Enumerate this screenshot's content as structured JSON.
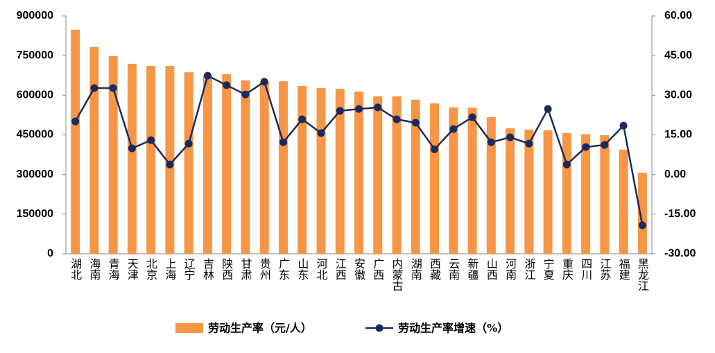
{
  "chart_data": {
    "type": "bar-line",
    "categories": [
      "湖北",
      "海南",
      "青海",
      "天津",
      "北京",
      "上海",
      "辽宁",
      "吉林",
      "陕西",
      "甘肃",
      "贵州",
      "广东",
      "山东",
      "河北",
      "江西",
      "安徽",
      "广西",
      "内蒙古",
      "湖南",
      "西藏",
      "云南",
      "新疆",
      "山西",
      "河南",
      "浙江",
      "宁夏",
      "重庆",
      "四川",
      "江苏",
      "福建",
      "黑龙江"
    ],
    "series": [
      {
        "name": "劳动生产率（元/人）",
        "color": "#f79646",
        "type": "bar",
        "values": [
          848000,
          782000,
          748000,
          719000,
          711000,
          711000,
          687000,
          675000,
          680000,
          656000,
          652000,
          653000,
          635000,
          627000,
          624000,
          614000,
          596000,
          596000,
          583000,
          569000,
          554000,
          553000,
          517000,
          475000,
          470000,
          467000,
          457000,
          453000,
          449000,
          394000,
          307000
        ]
      },
      {
        "name": "劳动生产率增速（%）",
        "color": "#1b2a5c",
        "type": "line",
        "axis": "y2",
        "values": [
          20.1,
          32.7,
          32.7,
          9.9,
          13.0,
          3.8,
          11.7,
          37.4,
          33.8,
          30.3,
          35.1,
          12.2,
          20.9,
          15.7,
          24.1,
          24.8,
          25.4,
          20.9,
          19.6,
          9.6,
          17.2,
          21.7,
          12.2,
          14.1,
          11.7,
          24.8,
          3.8,
          10.4,
          11.2,
          18.5,
          -19.2
        ]
      }
    ],
    "ylim": [
      0,
      900000
    ],
    "yticks": [
      0,
      150000,
      300000,
      450000,
      600000,
      750000,
      900000
    ],
    "y2lim": [
      -30,
      60
    ],
    "y2ticks": [
      {
        "value": -30,
        "label": "-30.00"
      },
      {
        "value": -15,
        "label": "-15.00"
      },
      {
        "value": 0,
        "label": "0.00"
      },
      {
        "value": 15,
        "label": "15.00"
      },
      {
        "value": 30,
        "label": "30.00"
      },
      {
        "value": 45,
        "label": "45.00"
      },
      {
        "value": 60,
        "label": "60.00"
      }
    ],
    "legend": "bottom"
  }
}
